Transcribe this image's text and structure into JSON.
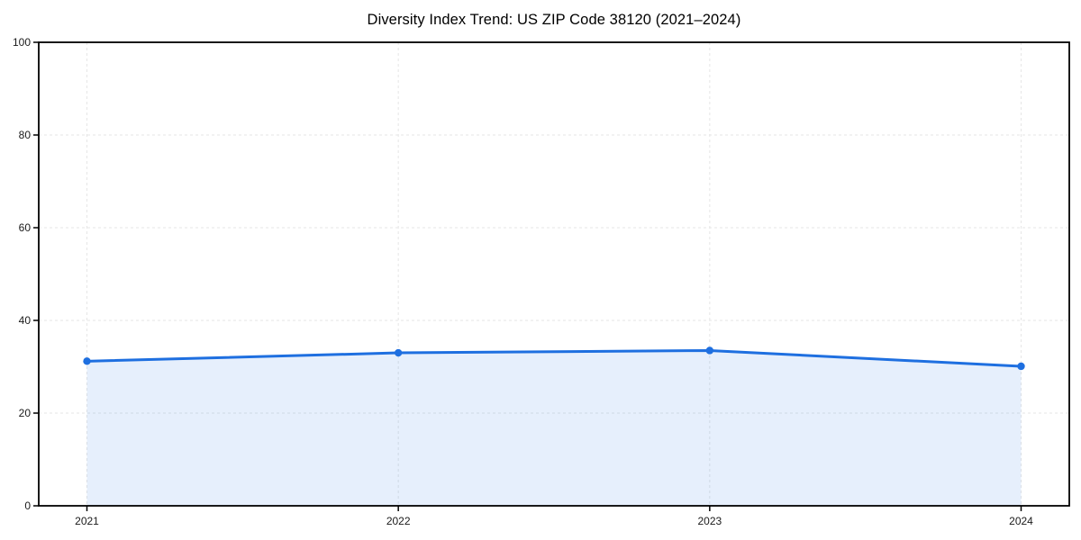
{
  "chart_data": {
    "type": "area",
    "title": "Diversity Index Trend: US ZIP Code 38120 (2021–2024)",
    "categories": [
      "2021",
      "2022",
      "2023",
      "2024"
    ],
    "series": [
      {
        "name": "Diversity Index",
        "values": [
          31.2,
          33.0,
          33.5,
          30.1
        ]
      }
    ],
    "xlabel": "",
    "ylabel": "",
    "ylim": [
      0,
      100
    ],
    "yticks": [
      0,
      20,
      40,
      60,
      80,
      100
    ],
    "grid": true,
    "grid_style": "dashed",
    "legend_position": "none",
    "marker": "circle",
    "colors": {
      "line": "#1e6fe0",
      "marker": "#1e6fe0",
      "fill": "rgba(30,111,224,0.11)",
      "grid": "#e6e6e6",
      "axis": "#000000",
      "text": "#1a1a1a",
      "background": "#ffffff"
    }
  }
}
